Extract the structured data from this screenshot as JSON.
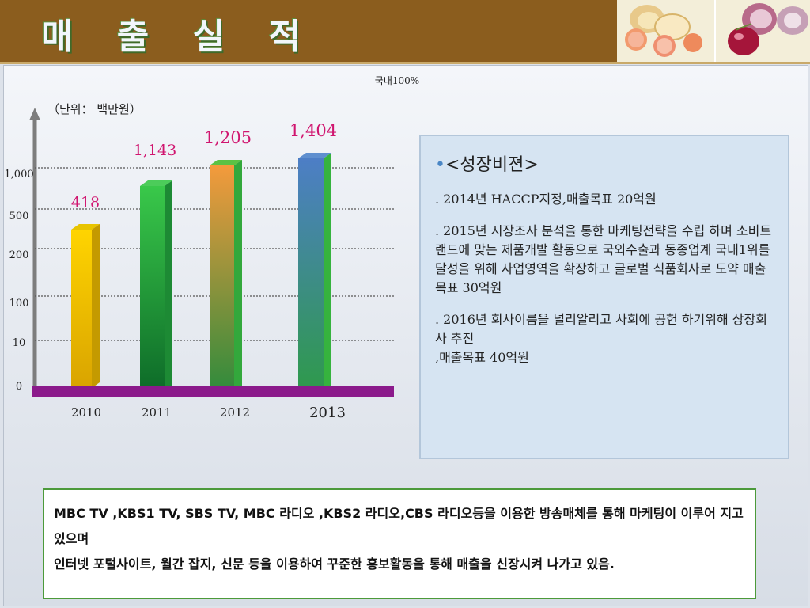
{
  "banner": {
    "title": "매 출 실 적"
  },
  "chart_data": {
    "type": "bar",
    "title": "국내100%",
    "unit": "（단위：  백만원）",
    "categories": [
      "2010",
      "2011",
      "2012",
      "2013"
    ],
    "values": [
      418,
      1143,
      1205,
      1404
    ],
    "value_labels": [
      "418",
      "1,143",
      "1,205",
      "1,404"
    ],
    "y_ticks": [
      "0",
      "10",
      "100",
      "200",
      "500",
      "1,000"
    ],
    "scale": "non-linear",
    "colors": [
      "#f5c400",
      "#2fb34a",
      "#f19a3e",
      "#4e82c4"
    ],
    "label_color": "#d0156f",
    "baseline_color": "#8b1a8b"
  },
  "vision": {
    "title": "<성장비젼>",
    "bullet": "•",
    "items": [
      ". 2014년   HACCP지정,매출목표 20억원",
      ". 2015년 시장조사 분석을 통한 마케팅전략을 수립 하며 소비트랜드에 맞는 제품개발 활동으로 국외수출과  동종업계 국내1위를  달성을 위해 사업영역을 확장하고 글로벌 식품회사로 도약 매출목표 30억원",
      ". 2016년 회사이름을 널리알리고 사회에 공헌 하기위해 상장회사 추진\n,매출목표  40억원"
    ]
  },
  "bottom": {
    "line1": "MBC TV ,KBS1 TV, SBS TV,  MBC 라디오 ,KBS2  라디오,CBS  라디오등을 이용한 방송매체를  통해 마케팅이 이루어 지고 있으며",
    "line2": "인터넷 포털사이트, 월간 잡지, 신문 등을 이용하여 꾸준한  홍보활동을 통해 매출을 신장시켜 나가고 있음."
  },
  "images": {
    "photo": "onion-grapefruit-photo"
  }
}
